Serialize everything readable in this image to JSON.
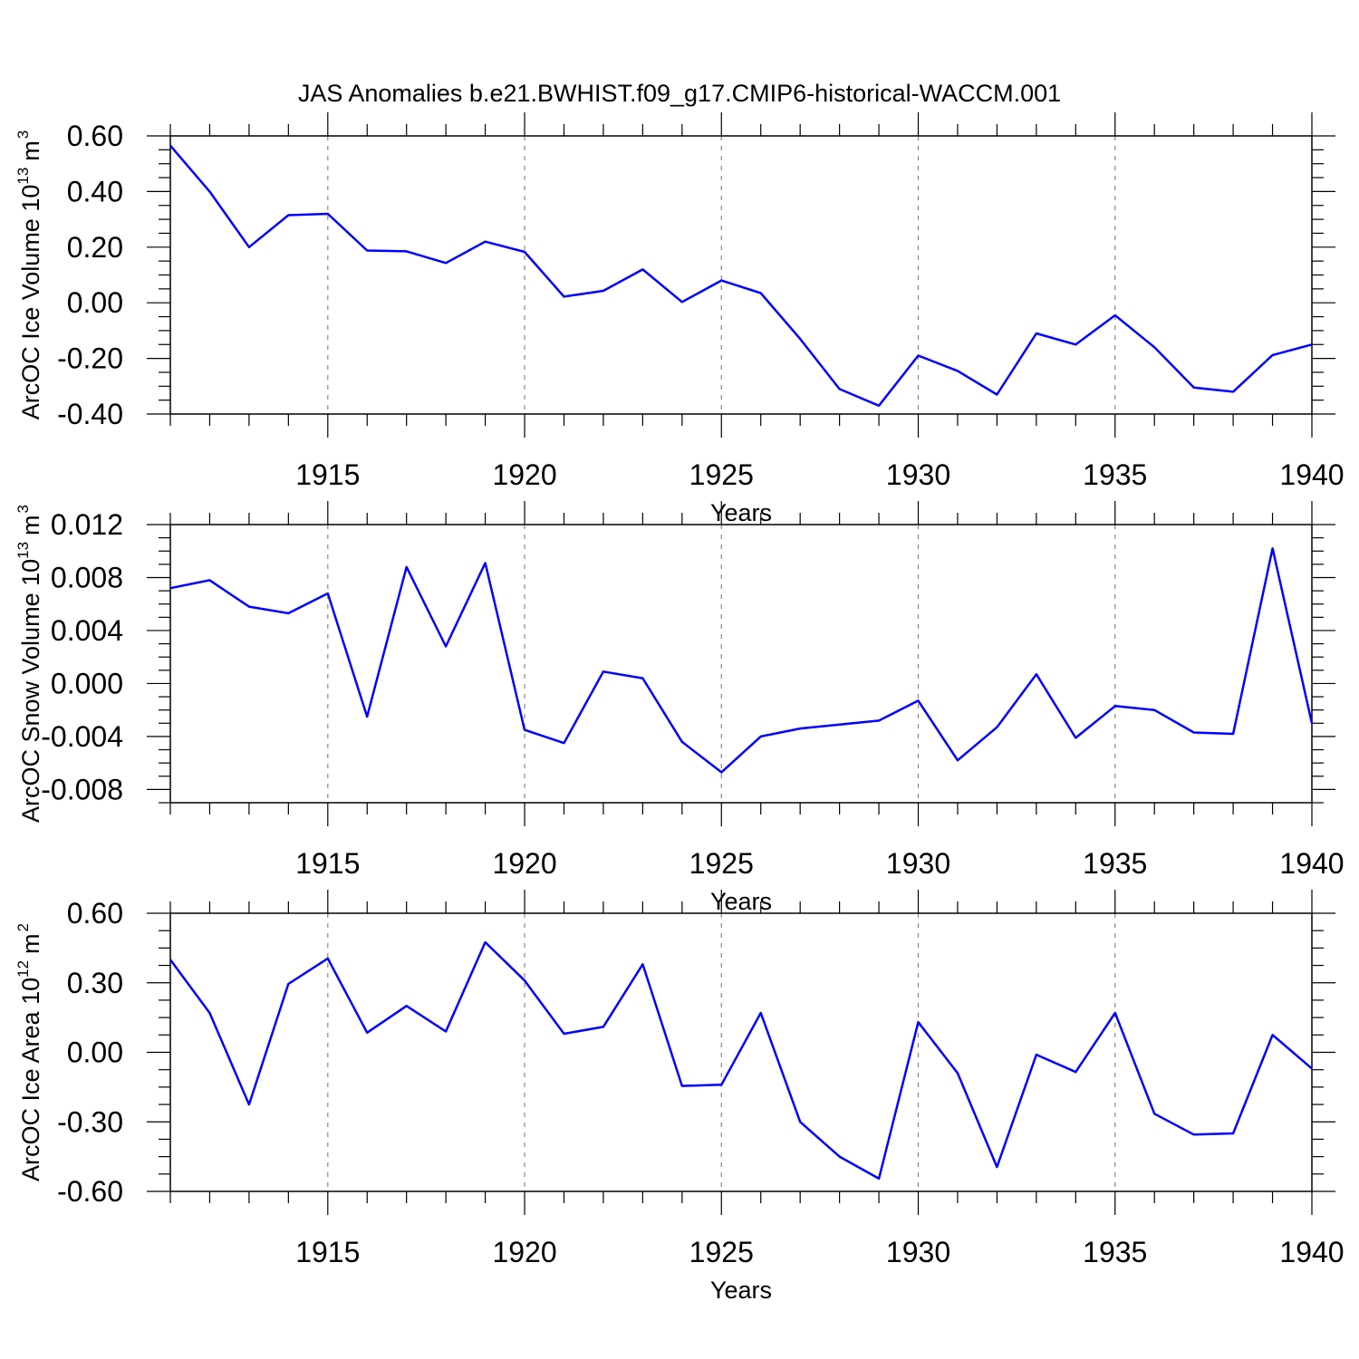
{
  "title": "JAS Anomalies b.e21.BWHIST.f09_g17.CMIP6-historical-WACCM.001",
  "line_color": "#0000ff",
  "chart_data": [
    {
      "type": "line",
      "ylabel": "ArcOC Ice Volume 10",
      "ylabel_exp": "13",
      "ylabel_unit": "m",
      "ylabel_unit_exp": "3",
      "xlabel": "Years",
      "xlim": [
        1911,
        1940
      ],
      "ylim": [
        -0.4,
        0.6
      ],
      "yticks": [
        "0.60",
        "0.40",
        "0.20",
        "0.00",
        "-0.20",
        "-0.40"
      ],
      "ytick_values": [
        0.6,
        0.4,
        0.2,
        0.0,
        -0.2,
        -0.4
      ],
      "xticks": [
        "1915",
        "1920",
        "1925",
        "1930",
        "1935",
        "1940"
      ],
      "xtick_values": [
        1915,
        1920,
        1925,
        1930,
        1935,
        1940
      ],
      "grid": "vertical dashed at major x ticks",
      "x": [
        1911,
        1912,
        1913,
        1914,
        1915,
        1916,
        1917,
        1918,
        1919,
        1920,
        1921,
        1922,
        1923,
        1924,
        1925,
        1926,
        1927,
        1928,
        1929,
        1930,
        1931,
        1932,
        1933,
        1934,
        1935,
        1936,
        1937,
        1938,
        1939,
        1940
      ],
      "values": [
        0.565,
        0.4,
        0.2,
        0.315,
        0.32,
        0.188,
        0.185,
        0.143,
        0.22,
        0.183,
        0.022,
        0.043,
        0.12,
        0.003,
        0.08,
        0.035,
        -0.13,
        -0.31,
        -0.37,
        -0.19,
        -0.245,
        -0.33,
        -0.11,
        -0.15,
        -0.045,
        -0.16,
        -0.305,
        -0.32,
        -0.188,
        -0.15
      ]
    },
    {
      "type": "line",
      "ylabel": "ArcOC Snow Volume 10",
      "ylabel_exp": "13",
      "ylabel_unit": "m",
      "ylabel_unit_exp": "3",
      "xlabel": "Years",
      "xlim": [
        1911,
        1940
      ],
      "ylim": [
        -0.009,
        0.012
      ],
      "yticks": [
        "0.012",
        "0.008",
        "0.004",
        "0.000",
        "-0.004",
        "-0.008"
      ],
      "ytick_values": [
        0.012,
        0.008,
        0.004,
        0.0,
        -0.004,
        -0.008
      ],
      "xticks": [
        "1915",
        "1920",
        "1925",
        "1930",
        "1935",
        "1940"
      ],
      "xtick_values": [
        1915,
        1920,
        1925,
        1930,
        1935,
        1940
      ],
      "grid": "vertical dashed at major x ticks",
      "x": [
        1911,
        1912,
        1913,
        1914,
        1915,
        1916,
        1917,
        1918,
        1919,
        1920,
        1921,
        1922,
        1923,
        1924,
        1925,
        1926,
        1927,
        1928,
        1929,
        1930,
        1931,
        1932,
        1933,
        1934,
        1935,
        1936,
        1937,
        1938,
        1939,
        1940
      ],
      "values": [
        0.0072,
        0.0078,
        0.0058,
        0.0053,
        0.0068,
        -0.0025,
        0.0088,
        0.0028,
        0.0091,
        -0.0035,
        -0.0045,
        0.0009,
        0.0004,
        -0.0044,
        -0.0067,
        -0.004,
        -0.0034,
        -0.0031,
        -0.0028,
        -0.0013,
        -0.0058,
        -0.0033,
        0.0007,
        -0.0041,
        -0.0017,
        -0.002,
        -0.0037,
        -0.0038,
        0.0102,
        -0.003
      ]
    },
    {
      "type": "line",
      "ylabel": "ArcOC Ice Area 10",
      "ylabel_exp": "12",
      "ylabel_unit": "m",
      "ylabel_unit_exp": "2",
      "xlabel": "Years",
      "xlim": [
        1911,
        1940
      ],
      "ylim": [
        -0.6,
        0.6
      ],
      "yticks": [
        "0.60",
        "0.30",
        "0.00",
        "-0.30",
        "-0.60"
      ],
      "ytick_values": [
        0.6,
        0.3,
        0.0,
        -0.3,
        -0.6
      ],
      "xticks": [
        "1915",
        "1920",
        "1925",
        "1930",
        "1935",
        "1940"
      ],
      "xtick_values": [
        1915,
        1920,
        1925,
        1930,
        1935,
        1940
      ],
      "grid": "vertical dashed at major x ticks",
      "x": [
        1911,
        1912,
        1913,
        1914,
        1915,
        1916,
        1917,
        1918,
        1919,
        1920,
        1921,
        1922,
        1923,
        1924,
        1925,
        1926,
        1927,
        1928,
        1929,
        1930,
        1931,
        1932,
        1933,
        1934,
        1935,
        1936,
        1937,
        1938,
        1939,
        1940
      ],
      "values": [
        0.4,
        0.17,
        -0.225,
        0.295,
        0.405,
        0.085,
        0.2,
        0.09,
        0.475,
        0.31,
        0.08,
        0.11,
        0.38,
        -0.145,
        -0.14,
        0.17,
        -0.3,
        -0.45,
        -0.545,
        0.13,
        -0.09,
        -0.495,
        -0.01,
        -0.085,
        0.17,
        -0.265,
        -0.355,
        -0.35,
        0.075,
        -0.07
      ]
    }
  ]
}
